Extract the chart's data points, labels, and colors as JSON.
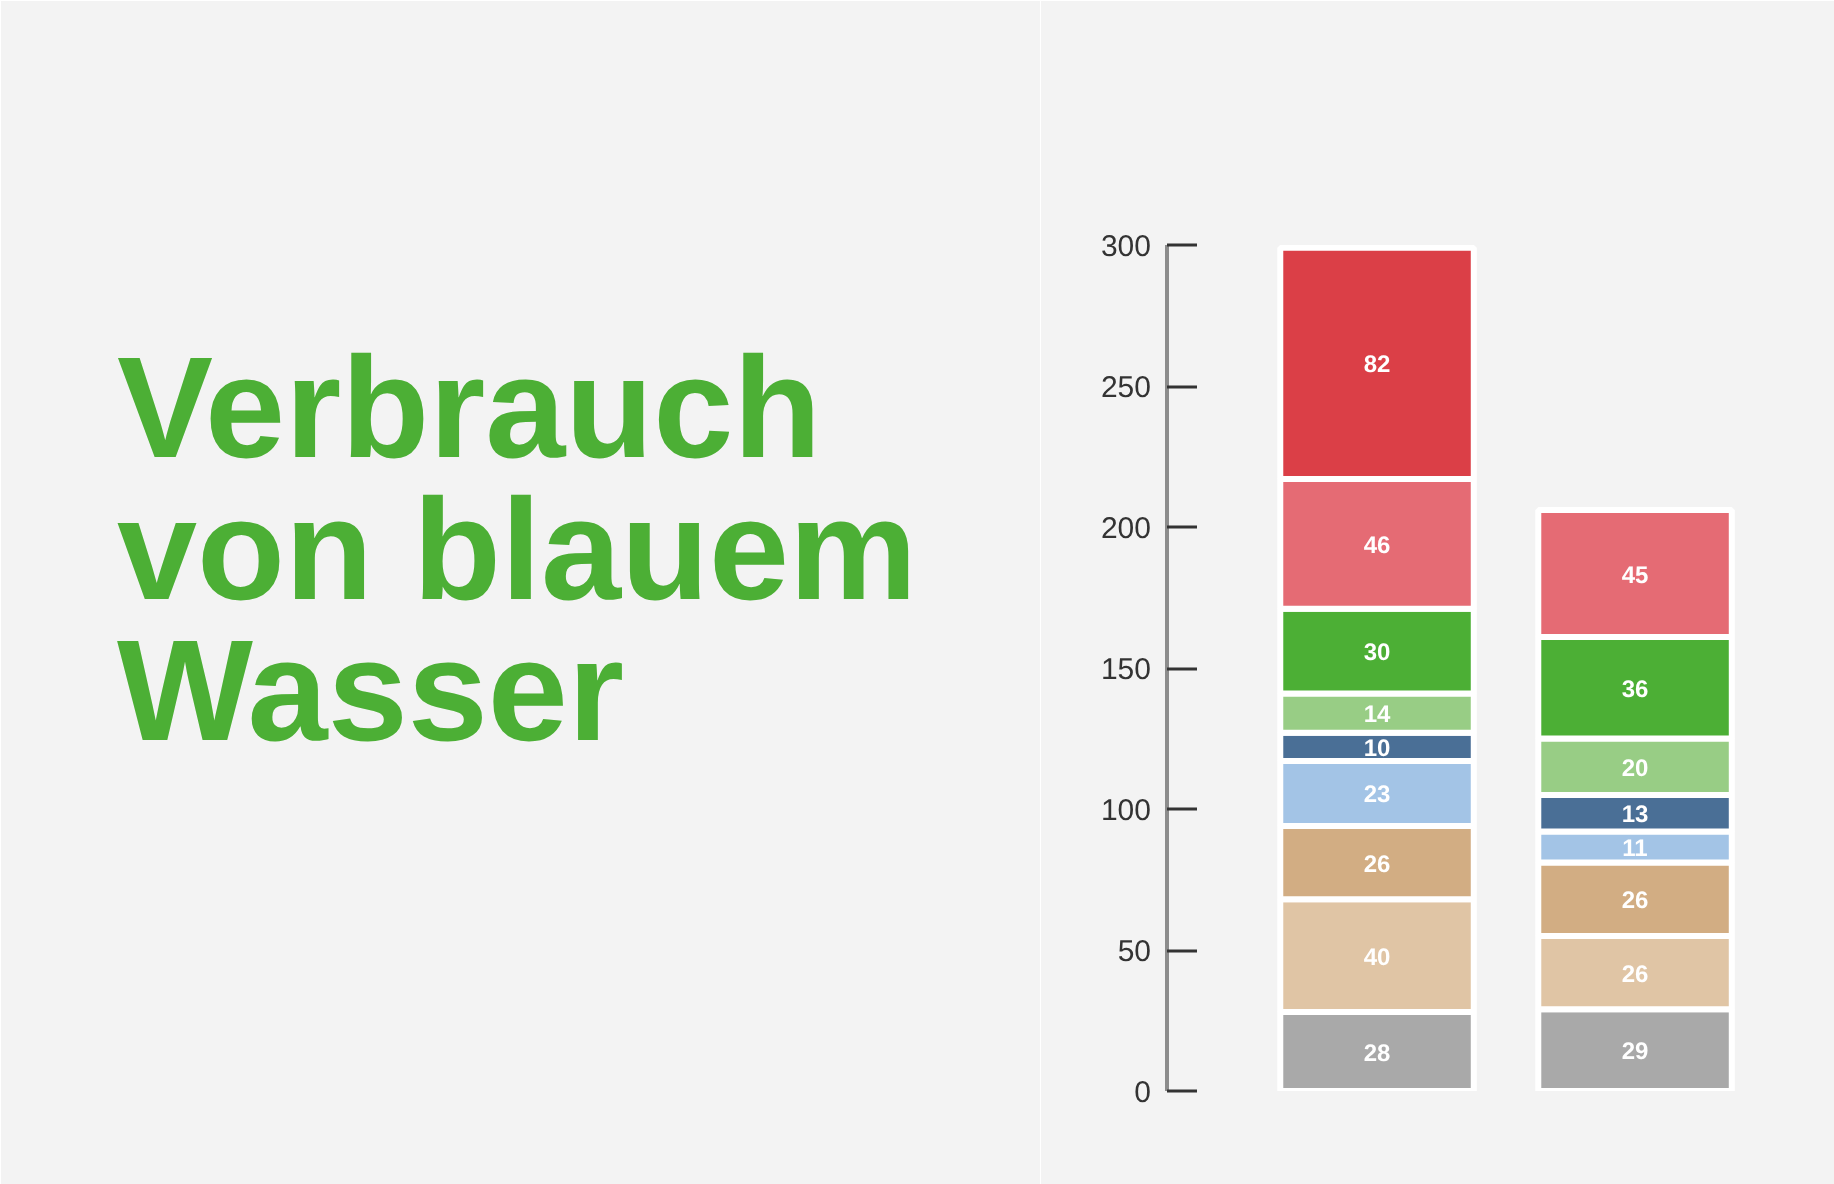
{
  "chart_data": {
    "type": "bar",
    "title": "Verbrauch von blauem Wasser",
    "categories": [
      null,
      null
    ],
    "stacked": true,
    "data_labels": true,
    "grid": false,
    "tick_labels": "y",
    "ylim": [
      0,
      300
    ],
    "yticks": [
      0,
      50,
      100,
      150,
      200,
      250,
      300
    ],
    "series": [
      {
        "color": "#a9a9a9",
        "values": [
          28,
          29
        ]
      },
      {
        "color": "#e0c5a5",
        "values": [
          40,
          26
        ]
      },
      {
        "color": "#d2ad83",
        "values": [
          26,
          26
        ]
      },
      {
        "color": "#a3c4e6",
        "values": [
          23,
          11
        ]
      },
      {
        "color": "#4a6f96",
        "values": [
          10,
          13
        ]
      },
      {
        "color": "#98cd85",
        "values": [
          14,
          20
        ]
      },
      {
        "color": "#4caf35",
        "values": [
          30,
          36
        ]
      },
      {
        "color": "#e56b74",
        "values": [
          46,
          45
        ]
      },
      {
        "color": "#db3f47",
        "values": [
          82,
          null
        ]
      }
    ]
  }
}
